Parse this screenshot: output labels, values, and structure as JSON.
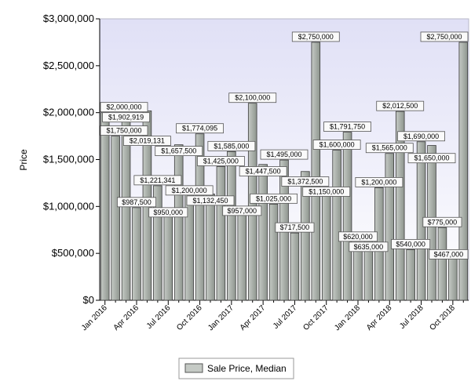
{
  "chart_data": {
    "type": "bar",
    "title": "",
    "xlabel": "",
    "ylabel": "Price",
    "ylim": [
      0,
      3000000
    ],
    "y_ticks": [
      "$0",
      "$500,000",
      "$1,000,000",
      "$1,500,000",
      "$2,000,000",
      "$2,500,000",
      "$3,000,000"
    ],
    "x_tick_labels": [
      "Jan 2016",
      "Apr 2016",
      "Jul 2016",
      "Oct 2016",
      "Jan 2017",
      "Apr 2017",
      "Jul 2017",
      "Oct 2017",
      "Jan 2018",
      "Apr 2018",
      "Jul 2018",
      "Oct 2018"
    ],
    "legend_position": "bottom",
    "grid": false,
    "colors": {
      "bar_fill": "#c5cac5",
      "bar_shade": "#8e958e",
      "plot_bg_top": "#e0e0f6",
      "plot_bg_bottom": "#ffffff"
    },
    "series": [
      {
        "name": "Sale Price, Median",
        "values": [
          2000000,
          1750000,
          1902919,
          987500,
          2019131,
          1221341,
          950000,
          1657500,
          1200000,
          1774095,
          1132450,
          1425000,
          1585000,
          957000,
          2100000,
          1447500,
          1025000,
          1495000,
          717500,
          1372500,
          2750000,
          1150000,
          1600000,
          1791750,
          620000,
          635000,
          1200000,
          1565000,
          2012500,
          540000,
          1690000,
          1650000,
          775000,
          467000,
          2750000
        ],
        "labels": [
          "$2,000,000",
          "$1,750,000",
          "$1,902,919",
          "$987,500",
          "$2,019,131",
          "$1,221,341",
          "$950,000",
          "$1,657,500",
          "$1,200,000",
          "$1,774,095",
          "$1,132,450",
          "$1,425,000",
          "$1,585,000",
          "$957,000",
          "$2,100,000",
          "$1,447,500",
          "$1,025,000",
          "$1,495,000",
          "$717,500",
          "$1,372,500",
          "$2,750,000",
          "$1,150,000",
          "$1,600,000",
          "$1,791,750",
          "$620,000",
          "$635,000",
          "$1,200,000",
          "$1,565,000",
          "$2,012,500",
          "$540,000",
          "$1,690,000",
          "$1,650,000",
          "$775,000",
          "$467,000",
          "$2,750,000"
        ]
      }
    ]
  }
}
